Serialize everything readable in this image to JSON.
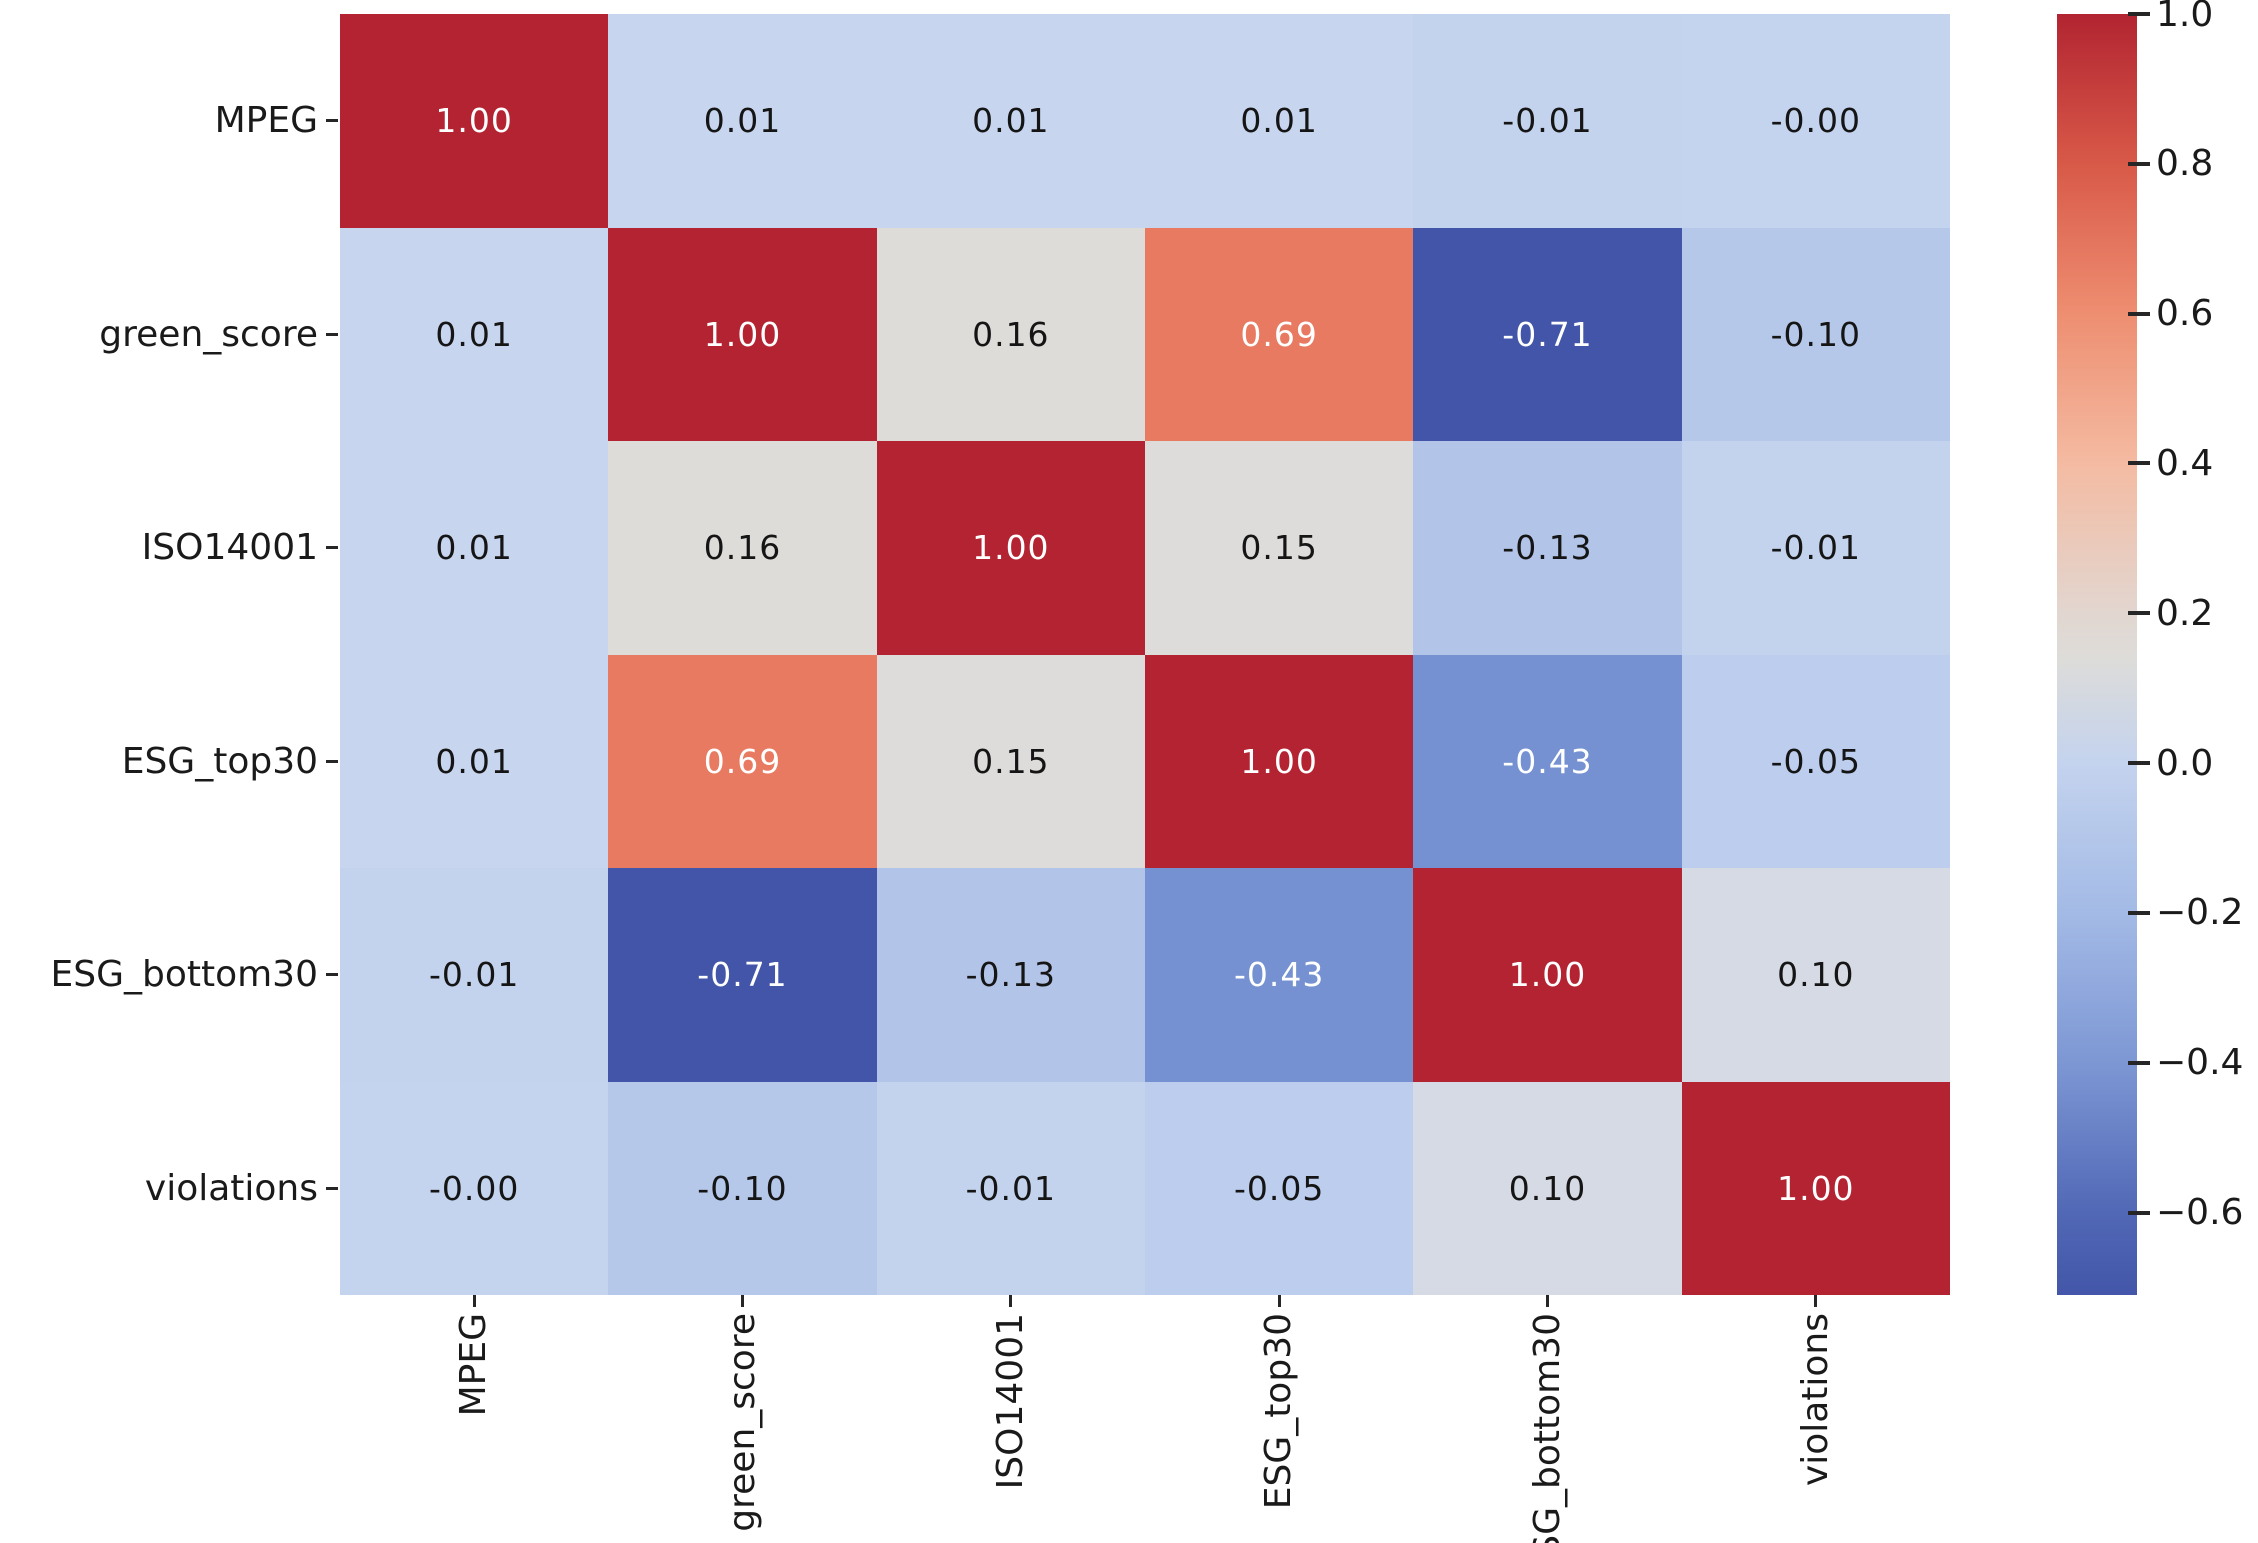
{
  "chart_data": {
    "type": "heatmap",
    "title": "",
    "xlabel": "",
    "ylabel": "",
    "grid": false,
    "legend_position": "right-colorbar",
    "categories": [
      "MPEG",
      "green_score",
      "ISO14001",
      "ESG_top30",
      "ESG_bottom30",
      "violations"
    ],
    "matrix": [
      [
        1.0,
        0.01,
        0.01,
        0.01,
        -0.01,
        0.0
      ],
      [
        0.01,
        1.0,
        0.16,
        0.69,
        -0.71,
        -0.1
      ],
      [
        0.01,
        0.16,
        1.0,
        0.15,
        -0.13,
        -0.01
      ],
      [
        0.01,
        0.69,
        0.15,
        1.0,
        -0.43,
        -0.05
      ],
      [
        -0.01,
        -0.71,
        -0.13,
        -0.43,
        1.0,
        0.1
      ],
      [
        0.0,
        -0.1,
        -0.01,
        -0.05,
        0.1,
        1.0
      ]
    ],
    "cell_labels": [
      [
        "1.00",
        "0.01",
        "0.01",
        "0.01",
        "-0.01",
        "-0.00"
      ],
      [
        "0.01",
        "1.00",
        "0.16",
        "0.69",
        "-0.71",
        "-0.10"
      ],
      [
        "0.01",
        "0.16",
        "1.00",
        "0.15",
        "-0.13",
        "-0.01"
      ],
      [
        "0.01",
        "0.69",
        "0.15",
        "1.00",
        "-0.43",
        "-0.05"
      ],
      [
        "-0.01",
        "-0.71",
        "-0.13",
        "-0.43",
        "1.00",
        "0.10"
      ],
      [
        "-0.00",
        "-0.10",
        "-0.01",
        "-0.05",
        "0.10",
        "1.00"
      ]
    ],
    "cell_colors": [
      [
        "#b42331",
        "#c7d5ef",
        "#c7d5ef",
        "#c7d5ef",
        "#c3d2ed",
        "#c4d3ee"
      ],
      [
        "#c7d5ef",
        "#b42331",
        "#dedcd9",
        "#e87a61",
        "#4255a8",
        "#b6c8ea"
      ],
      [
        "#c7d5ef",
        "#dedcd9",
        "#b42331",
        "#dedcda",
        "#b2c4e8",
        "#c3d2ed"
      ],
      [
        "#c7d5ef",
        "#e87a61",
        "#dedcda",
        "#b42331",
        "#7591d1",
        "#bccded"
      ],
      [
        "#c3d2ed",
        "#4255a8",
        "#b2c4e8",
        "#7591d1",
        "#b42331",
        "#d6dae4"
      ],
      [
        "#c4d3ee",
        "#b6c8ea",
        "#c3d2ed",
        "#bccded",
        "#d6dae4",
        "#b42331"
      ]
    ],
    "cell_text_colors": [
      [
        "#ffffff",
        "#151515",
        "#151515",
        "#151515",
        "#151515",
        "#151515"
      ],
      [
        "#151515",
        "#ffffff",
        "#151515",
        "#ffffff",
        "#ffffff",
        "#151515"
      ],
      [
        "#151515",
        "#151515",
        "#ffffff",
        "#151515",
        "#151515",
        "#151515"
      ],
      [
        "#151515",
        "#ffffff",
        "#151515",
        "#ffffff",
        "#ffffff",
        "#151515"
      ],
      [
        "#151515",
        "#ffffff",
        "#151515",
        "#ffffff",
        "#ffffff",
        "#151515"
      ],
      [
        "#151515",
        "#151515",
        "#151515",
        "#151515",
        "#151515",
        "#ffffff"
      ]
    ],
    "colormap": {
      "name": "coolwarm",
      "vmin": -0.71,
      "vmax": 1.0
    },
    "colorbar": {
      "ticks": [
        {
          "label": "1.0",
          "value": 1.0
        },
        {
          "label": "0.8",
          "value": 0.8
        },
        {
          "label": "0.6",
          "value": 0.6
        },
        {
          "label": "0.4",
          "value": 0.4
        },
        {
          "label": "0.2",
          "value": 0.2
        },
        {
          "label": "0.0",
          "value": 0.0
        },
        {
          "label": "−0.2",
          "value": -0.2
        },
        {
          "label": "−0.4",
          "value": -0.4
        },
        {
          "label": "−0.6",
          "value": -0.6
        }
      ],
      "gradient_stops": [
        {
          "offset": 0.0,
          "color": "#b22431"
        },
        {
          "offset": 11.7,
          "color": "#d85948"
        },
        {
          "offset": 23.4,
          "color": "#ee8e71"
        },
        {
          "offset": 35.1,
          "color": "#f4bba2"
        },
        {
          "offset": 46.8,
          "color": "#e2d6d0"
        },
        {
          "offset": 50.3,
          "color": "#dddcd9"
        },
        {
          "offset": 58.5,
          "color": "#c4d3ee"
        },
        {
          "offset": 70.2,
          "color": "#a3bae6"
        },
        {
          "offset": 81.9,
          "color": "#7d97d4"
        },
        {
          "offset": 93.6,
          "color": "#5168b6"
        },
        {
          "offset": 100.0,
          "color": "#4356a9"
        }
      ]
    }
  }
}
